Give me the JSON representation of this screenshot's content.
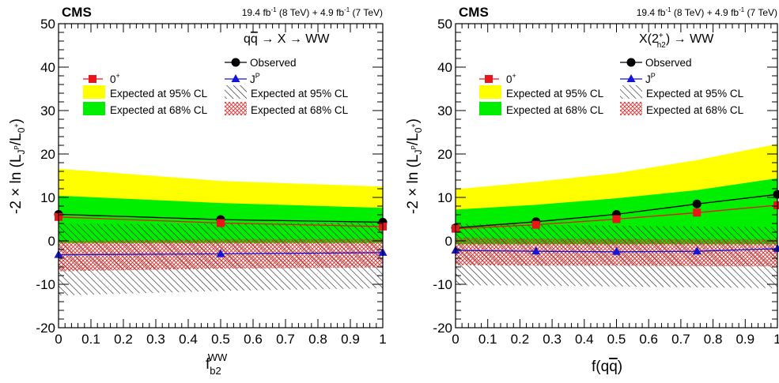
{
  "chart_data": [
    {
      "type": "line",
      "experiment": "CMS",
      "lumi_main": "19.4 fb",
      "lumi_main_sup": "-1",
      "lumi_main_energy": " (8 TeV) + 4.9 fb",
      "lumi_second_sup": "-1",
      "lumi_second_energy": " (7 TeV)",
      "process": "q̅q → X → WW",
      "process_parts": [
        "q",
        "q",
        " → X → WW"
      ],
      "ylabel": "-2 × ln (L",
      "ylabel_sub": "J",
      "ylabel_subsup": "P",
      "ylabel_mid": "/L",
      "ylabel_sub2": "0",
      "ylabel_sub2sup": "+",
      "ylabel_end": ")",
      "xlabel": "f",
      "xlabel_sub": "b2",
      "xlabel_sup": "WW",
      "xlim": [
        0,
        1
      ],
      "ylim": [
        -20,
        50
      ],
      "xticks": [
        "0",
        "0.1",
        "0.2",
        "0.3",
        "0.4",
        "0.5",
        "0.6",
        "0.7",
        "0.8",
        "0.9",
        "1"
      ],
      "yticks": [
        "-20",
        "-10",
        "0",
        "10",
        "20",
        "30",
        "40",
        "50"
      ],
      "x": [
        0,
        0.5,
        1
      ],
      "series": [
        {
          "name": "Observed",
          "values": [
            6.1,
            4.9,
            4.3
          ],
          "color": "#000000",
          "marker": "circle"
        },
        {
          "name": "0+",
          "values": [
            5.5,
            4.1,
            3.3
          ],
          "color": "#e8151a",
          "marker": "square"
        },
        {
          "name": "JP",
          "values": [
            -3.2,
            -3.0,
            -2.7
          ],
          "color": "#1515d6",
          "marker": "triangle"
        }
      ],
      "bands": {
        "null_95": {
          "lower": [
            -0.5,
            -0.5,
            -0.5
          ],
          "upper": [
            16.6,
            13.8,
            12.5
          ]
        },
        "null_68": {
          "lower": [
            -0.5,
            -0.5,
            -0.5
          ],
          "upper": [
            10.4,
            8.7,
            7.6
          ]
        },
        "alt_95": {
          "lower": [
            -12.6,
            -11.5,
            -10.9
          ],
          "upper": [
            3.9,
            4.0,
            4.2
          ]
        },
        "alt_68": {
          "lower": [
            -7.0,
            -6.4,
            -6.1
          ],
          "upper": [
            0.0,
            0.3,
            0.4
          ]
        }
      },
      "legend": {
        "observed": "Observed",
        "null_hyp": "0",
        "null_hyp_sup": "+",
        "alt_hyp": "J",
        "alt_hyp_sup": "P",
        "exp95": "Expected at 95% CL",
        "exp68": "Expected at 68% CL"
      },
      "colors": {
        "yellow": "#ffff00",
        "green": "#00ee00",
        "alt95_hatch": "#1a1a1a",
        "alt68_hatch": "#e03030"
      }
    },
    {
      "type": "line",
      "experiment": "CMS",
      "lumi_main": "19.4 fb",
      "lumi_main_sup": "-1",
      "lumi_main_energy": " (8 TeV) + 4.9 fb",
      "lumi_second_sup": "-1",
      "lumi_second_energy": " (7 TeV)",
      "process": "X(2+h2) → WW",
      "process_parts": [
        "X(2",
        "+",
        "h2",
        ") → WW"
      ],
      "ylabel": "-2 × ln (L",
      "ylabel_sub": "J",
      "ylabel_subsup": "P",
      "ylabel_mid": "/L",
      "ylabel_sub2": "0",
      "ylabel_sub2sup": "+",
      "ylabel_end": ")",
      "xlabel": "f(q̅q)",
      "xlabel_parts": [
        "f(q",
        "q",
        ")"
      ],
      "xlim": [
        0,
        1
      ],
      "ylim": [
        -20,
        50
      ],
      "xticks": [
        "0",
        "0.1",
        "0.2",
        "0.3",
        "0.4",
        "0.5",
        "0.6",
        "0.7",
        "0.8",
        "0.9",
        "1"
      ],
      "yticks": [
        "-20",
        "-10",
        "0",
        "10",
        "20",
        "30",
        "40",
        "50"
      ],
      "x": [
        0,
        0.25,
        0.5,
        0.75,
        1
      ],
      "series": [
        {
          "name": "Observed",
          "values": [
            3.0,
            4.4,
            6.1,
            8.5,
            10.7
          ],
          "color": "#000000",
          "marker": "circle"
        },
        {
          "name": "0+",
          "values": [
            2.8,
            3.7,
            5.0,
            6.5,
            8.2
          ],
          "color": "#e8151a",
          "marker": "square"
        },
        {
          "name": "JP",
          "values": [
            -2.2,
            -2.4,
            -2.5,
            -2.4,
            -1.8
          ],
          "color": "#1515d6",
          "marker": "triangle"
        }
      ],
      "bands": {
        "null_95": {
          "lower": [
            -0.8,
            -0.8,
            -0.8,
            -0.8,
            -0.8
          ],
          "upper": [
            11.9,
            13.6,
            15.6,
            18.6,
            22.3
          ]
        },
        "null_68": {
          "lower": [
            -0.8,
            -0.8,
            -0.8,
            -0.8,
            -0.8
          ],
          "upper": [
            7.2,
            8.3,
            9.8,
            11.7,
            14.4
          ]
        },
        "alt_95": {
          "lower": [
            -10.2,
            -10.3,
            -10.5,
            -10.7,
            -10.9
          ],
          "upper": [
            4.0,
            3.7,
            3.5,
            3.3,
            3.2
          ]
        },
        "alt_68": {
          "lower": [
            -5.6,
            -5.7,
            -5.7,
            -5.8,
            -5.9
          ],
          "upper": [
            0.7,
            0.5,
            0.4,
            0.3,
            0.3
          ]
        }
      },
      "legend": {
        "observed": "Observed",
        "null_hyp": "0",
        "null_hyp_sup": "+",
        "alt_hyp": "J",
        "alt_hyp_sup": "P",
        "exp95": "Expected at 95% CL",
        "exp68": "Expected at 68% CL"
      },
      "colors": {
        "yellow": "#ffff00",
        "green": "#00ee00",
        "alt95_hatch": "#1a1a1a",
        "alt68_hatch": "#e03030"
      }
    }
  ]
}
